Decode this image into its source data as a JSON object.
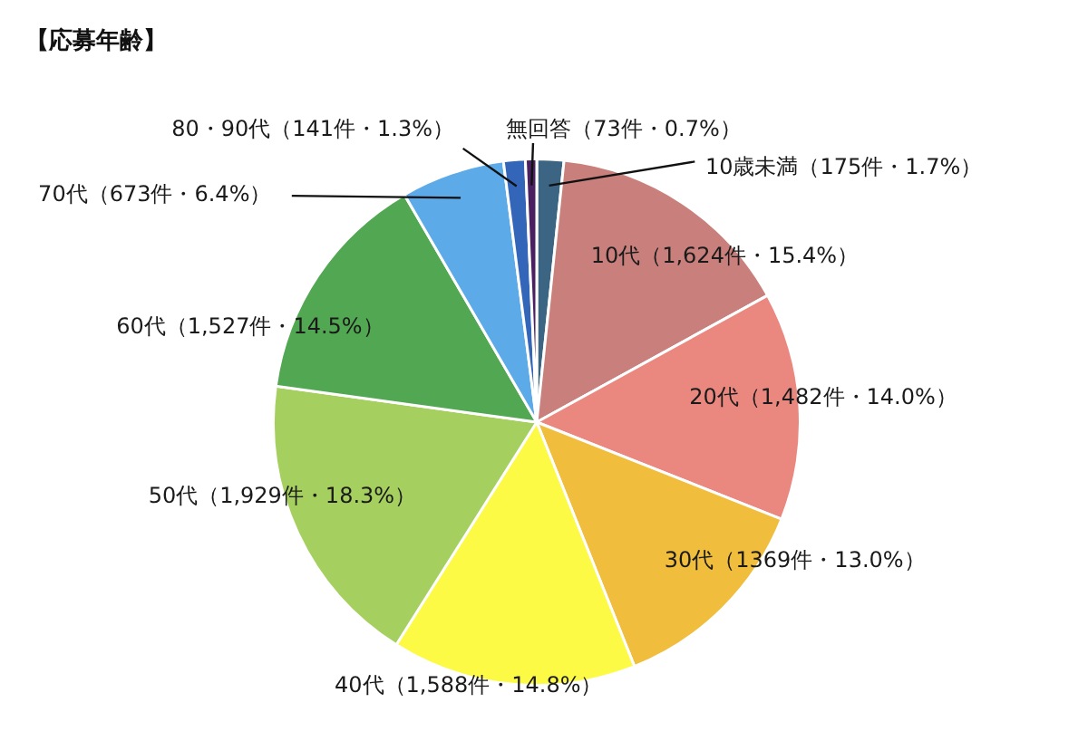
{
  "chart_data": {
    "type": "pie",
    "title": "【応募年齢】",
    "categories": [
      "10歳未満（175件・1.7%）",
      "10代（1,624件・15.4%）",
      "20代（1,482件・14.0%）",
      "30代（1369件・13.0%）",
      "40代（1,588件・14.8%）",
      "50代（1,929件・18.3%）",
      "60代（1,527件・14.5%）",
      "70代（673件・6.4%）",
      "80・90代（141件・1.3%）",
      "無回答（73件・0.7%）"
    ],
    "values": [
      175,
      1624,
      1482,
      1369,
      1588,
      1929,
      1527,
      673,
      141,
      73
    ],
    "colors": [
      "#3b6583",
      "#c9807c",
      "#ea8880",
      "#f0bd3c",
      "#fdfa45",
      "#a5cf5e",
      "#52a852",
      "#5caae8",
      "#3366b8",
      "#4a2060"
    ]
  }
}
